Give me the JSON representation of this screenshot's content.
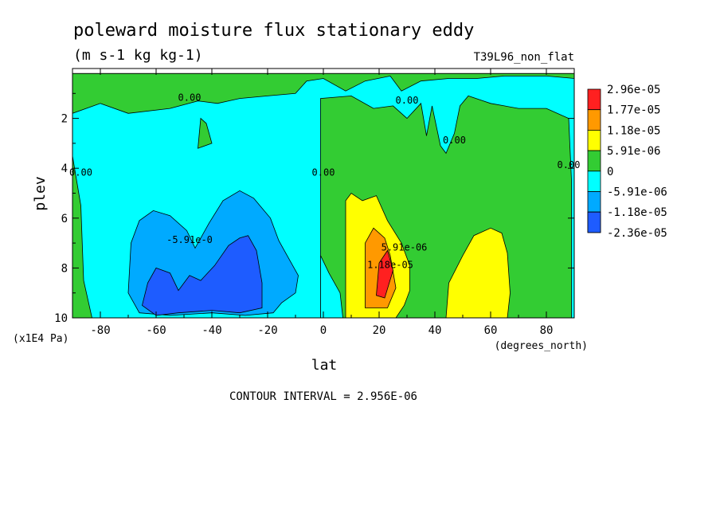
{
  "chart_data": {
    "type": "heatmap",
    "title": "poleward moisture flux stationary eddy",
    "subtitle": "(m s-1 kg kg-1)",
    "run_label": "T39L96_non_flat",
    "xlabel": "lat",
    "x_units": "(degrees_north)",
    "ylabel": "plev",
    "y_units": "(x1E4 Pa)",
    "xlim": [
      -90,
      90
    ],
    "ylim": [
      0,
      10
    ],
    "y_inverted": true,
    "x_ticks": [
      -80,
      -60,
      -40,
      -20,
      0,
      20,
      40,
      60,
      80
    ],
    "y_ticks": [
      2,
      4,
      6,
      8,
      10
    ],
    "footer": "CONTOUR INTERVAL = 2.956E-06",
    "legend_position": "right",
    "legend": [
      {
        "label": "2.96e-05",
        "color": "#ff2020"
      },
      {
        "label": "1.77e-05",
        "color": "#ff9900"
      },
      {
        "label": "1.18e-05",
        "color": "#ffff00"
      },
      {
        "label": "5.91e-06",
        "color": "#33cc33"
      },
      {
        "label": "0",
        "color": "#00ffff"
      },
      {
        "label": "-5.91e-06",
        "color": "#00aaff"
      },
      {
        "label": "-1.18e-05",
        "color": "#1e5cff"
      },
      {
        "label": "-2.36e-05",
        "color": ""
      }
    ],
    "contour_labels": [
      {
        "text": "0.00",
        "lat": -48,
        "plev": 1.3
      },
      {
        "text": "0.00",
        "lat": -87,
        "plev": 4.3
      },
      {
        "text": "0.00",
        "lat": 0,
        "plev": 4.3
      },
      {
        "text": "0.00",
        "lat": 30,
        "plev": 1.4
      },
      {
        "text": "0.00",
        "lat": 47,
        "plev": 3.0
      },
      {
        "text": "0.00",
        "lat": 88,
        "plev": 4.0
      },
      {
        "text": "-5.91e-0",
        "lat": -48,
        "plev": 7.0
      },
      {
        "text": "5.91e-06",
        "lat": 29,
        "plev": 7.3
      },
      {
        "text": "1.18e-05",
        "lat": 24,
        "plev": 8.0
      }
    ],
    "regions": [
      {
        "name": "cyan",
        "color": "#00ffff",
        "pts": [
          [
            -90,
            10
          ],
          [
            -90,
            0.2
          ],
          [
            90,
            0.2
          ],
          [
            90,
            10
          ]
        ]
      },
      {
        "name": "green-top",
        "color": "#33cc33",
        "pts": [
          [
            -90,
            0.2
          ],
          [
            -90,
            1.8
          ],
          [
            -80,
            1.4
          ],
          [
            -70,
            1.8
          ],
          [
            -55,
            1.6
          ],
          [
            -45,
            1.3
          ],
          [
            -38,
            1.4
          ],
          [
            -30,
            1.2
          ],
          [
            -20,
            1.1
          ],
          [
            -10,
            1.0
          ],
          [
            -6,
            0.5
          ],
          [
            0,
            0.4
          ],
          [
            8,
            0.9
          ],
          [
            15,
            0.5
          ],
          [
            24,
            0.3
          ],
          [
            28,
            0.9
          ],
          [
            35,
            0.5
          ],
          [
            45,
            0.4
          ],
          [
            55,
            0.4
          ],
          [
            65,
            0.3
          ],
          [
            80,
            0.3
          ],
          [
            90,
            0.4
          ],
          [
            90,
            0.2
          ]
        ]
      },
      {
        "name": "green-island",
        "color": "#33cc33",
        "pts": [
          [
            -45,
            3.2
          ],
          [
            -44,
            2.0
          ],
          [
            -42,
            2.2
          ],
          [
            -40,
            3.0
          ]
        ]
      },
      {
        "name": "green-left",
        "color": "#33cc33",
        "pts": [
          [
            -90,
            10
          ],
          [
            -90,
            3.5
          ],
          [
            -87,
            5.5
          ],
          [
            -86,
            8.5
          ],
          [
            -83,
            10
          ]
        ]
      },
      {
        "name": "green-right",
        "color": "#33cc33",
        "pts": [
          [
            -1,
            10
          ],
          [
            -1,
            1.2
          ],
          [
            10,
            1.1
          ],
          [
            18,
            1.6
          ],
          [
            25,
            1.5
          ],
          [
            30,
            2.0
          ],
          [
            35,
            1.4
          ],
          [
            37,
            2.7
          ],
          [
            39,
            1.5
          ],
          [
            42,
            3.1
          ],
          [
            44,
            3.4
          ],
          [
            47,
            2.6
          ],
          [
            49,
            1.5
          ],
          [
            52,
            1.1
          ],
          [
            60,
            1.4
          ],
          [
            70,
            1.6
          ],
          [
            80,
            1.6
          ],
          [
            88,
            2.0
          ],
          [
            89,
            4.5
          ],
          [
            89,
            10
          ]
        ]
      },
      {
        "name": "cyan-notch",
        "color": "#00ffff",
        "pts": [
          [
            -1,
            10
          ],
          [
            -1,
            7.5
          ],
          [
            2,
            8.2
          ],
          [
            6,
            9.0
          ],
          [
            7,
            10
          ]
        ]
      },
      {
        "name": "cyan-notch2",
        "color": "#00ffff",
        "pts": [
          [
            8,
            10
          ],
          [
            9,
            9.2
          ],
          [
            12,
            9.6
          ],
          [
            12,
            10
          ]
        ]
      },
      {
        "name": "lightblue",
        "color": "#00aaff",
        "pts": [
          [
            -70,
            9.0
          ],
          [
            -69,
            7.0
          ],
          [
            -66,
            6.1
          ],
          [
            -61,
            5.7
          ],
          [
            -55,
            5.9
          ],
          [
            -49,
            6.5
          ],
          [
            -46,
            7.2
          ],
          [
            -41,
            6.2
          ],
          [
            -36,
            5.3
          ],
          [
            -30,
            4.9
          ],
          [
            -25,
            5.2
          ],
          [
            -19,
            6.0
          ],
          [
            -16,
            6.9
          ],
          [
            -13,
            7.5
          ],
          [
            -9,
            8.3
          ],
          [
            -10,
            9.0
          ],
          [
            -15,
            9.4
          ],
          [
            -18,
            9.8
          ],
          [
            -28,
            9.9
          ],
          [
            -40,
            9.8
          ],
          [
            -55,
            9.9
          ],
          [
            -66,
            9.8
          ]
        ]
      },
      {
        "name": "blue",
        "color": "#1e5cff",
        "pts": [
          [
            -65,
            9.5
          ],
          [
            -63,
            8.6
          ],
          [
            -60,
            8.0
          ],
          [
            -55,
            8.2
          ],
          [
            -52,
            8.9
          ],
          [
            -48,
            8.3
          ],
          [
            -44,
            8.5
          ],
          [
            -39,
            7.9
          ],
          [
            -34,
            7.1
          ],
          [
            -30,
            6.8
          ],
          [
            -27,
            6.7
          ],
          [
            -24,
            7.3
          ],
          [
            -22,
            8.6
          ],
          [
            -22,
            9.6
          ],
          [
            -30,
            9.8
          ],
          [
            -40,
            9.7
          ],
          [
            -52,
            9.8
          ],
          [
            -60,
            9.9
          ]
        ]
      },
      {
        "name": "yellow-nh",
        "color": "#ffff00",
        "pts": [
          [
            8,
            10
          ],
          [
            8,
            5.3
          ],
          [
            10,
            5.0
          ],
          [
            14,
            5.3
          ],
          [
            19,
            5.1
          ],
          [
            23,
            6.1
          ],
          [
            28,
            7.0
          ],
          [
            31,
            7.9
          ],
          [
            31,
            8.9
          ],
          [
            29,
            9.5
          ],
          [
            26,
            10
          ]
        ]
      },
      {
        "name": "orange",
        "color": "#ff9900",
        "pts": [
          [
            15,
            9.6
          ],
          [
            15,
            7.0
          ],
          [
            18,
            6.4
          ],
          [
            22,
            6.8
          ],
          [
            24,
            7.5
          ],
          [
            26,
            8.8
          ],
          [
            23,
            9.6
          ]
        ]
      },
      {
        "name": "red",
        "color": "#ff2020",
        "pts": [
          [
            19,
            9.1
          ],
          [
            20,
            7.8
          ],
          [
            23,
            7.3
          ],
          [
            25,
            8.1
          ],
          [
            22,
            9.2
          ]
        ]
      },
      {
        "name": "yellow-mid",
        "color": "#ffff00",
        "pts": [
          [
            44,
            10
          ],
          [
            45,
            8.6
          ],
          [
            50,
            7.5
          ],
          [
            54,
            6.7
          ],
          [
            60,
            6.4
          ],
          [
            64,
            6.6
          ],
          [
            66,
            7.4
          ],
          [
            67,
            9.0
          ],
          [
            66,
            10
          ]
        ]
      }
    ]
  }
}
